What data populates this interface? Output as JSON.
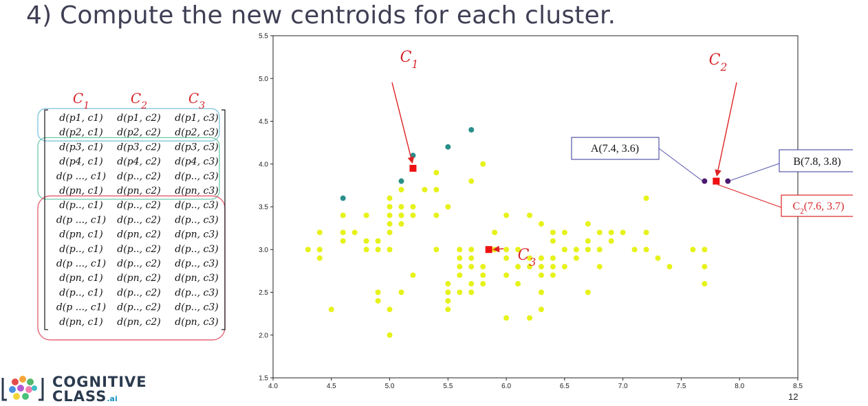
{
  "slide": {
    "title": "4) Compute the new centroids for each cluster.",
    "page_number": "12"
  },
  "logo": {
    "line1": "COGNITIVE",
    "line2": "CLASS",
    "suffix": ".ai"
  },
  "matrix": {
    "headers": [
      "C1",
      "C2",
      "C3"
    ],
    "rows": [
      [
        "d(p1, c1)",
        "d(p1, c2)",
        "d(p1, c3)"
      ],
      [
        "d(p2, c1)",
        "d(p2, c2)",
        "d(p2, c3)"
      ],
      [
        "d(p3, c1)",
        "d(p3, c2)",
        "d(p3, c3)"
      ],
      [
        "d(p4, c1)",
        "d(p4, c2)",
        "d(p4, c3)"
      ],
      [
        "d(p ..., c1)",
        "d(p.., c2)",
        "d(p.., c3)"
      ],
      [
        "d(pn, c1)",
        "d(pn, c2)",
        "d(pn, c3)"
      ],
      [
        "d(p.., c1)",
        "d(p.., c2)",
        "d(p.., c3)"
      ],
      [
        "d(p ..., c1)",
        "d(p.., c2)",
        "d(p.., c3)"
      ],
      [
        "d(pn, c1)",
        "d(pn, c2)",
        "d(pn, c3)"
      ],
      [
        "d(p.., c1)",
        "d(p.., c2)",
        "d(p.., c3)"
      ],
      [
        "d(p ..., c1)",
        "d(p.., c2)",
        "d(p.., c3)"
      ],
      [
        "d(pn, c1)",
        "d(pn, c2)",
        "d(pn, c3)"
      ],
      [
        "d(p.., c1)",
        "d(p.., c2)",
        "d(p.., c3)"
      ],
      [
        "d(p ..., c1)",
        "d(p.., c2)",
        "d(p.., c3)"
      ],
      [
        "d(pn, c1)",
        "d(pn, c2)",
        "d(pn, c3)"
      ]
    ],
    "groups": [
      {
        "rows": [
          0,
          1
        ],
        "color": "#7cc4dc"
      },
      {
        "rows": [
          2,
          5
        ],
        "color": "#6fc9a8"
      },
      {
        "rows": [
          6,
          14
        ],
        "color": "#e25a6e"
      }
    ]
  },
  "colors": {
    "yellow_cluster": "#e6f21a",
    "teal_cluster": "#2a8f8b",
    "purple_cluster": "#4b1a6e",
    "centroid": "#ee1111",
    "arrow": "#dd2222",
    "callout_box": "#5555aa",
    "callout_red": "#dd2222"
  },
  "chart_data": {
    "type": "scatter",
    "title": "",
    "xlabel": "",
    "ylabel": "",
    "xlim": [
      4.0,
      8.5
    ],
    "ylim": [
      1.5,
      5.5
    ],
    "x_ticks": [
      "4.0",
      "4.5",
      "5.0",
      "5.5",
      "6.0",
      "6.5",
      "7.0",
      "7.5",
      "8.0",
      "8.5"
    ],
    "y_ticks": [
      "1.5",
      "2.0",
      "2.5",
      "3.0",
      "3.5",
      "4.0",
      "4.5",
      "5.0",
      "5.5"
    ],
    "grid": false,
    "series": [
      {
        "color": "#e6f21a",
        "points": [
          [
            4.3,
            3.0
          ],
          [
            4.4,
            2.9
          ],
          [
            4.4,
            3.0
          ],
          [
            4.4,
            3.2
          ],
          [
            4.5,
            2.3
          ],
          [
            4.6,
            3.1
          ],
          [
            4.6,
            3.2
          ],
          [
            4.6,
            3.4
          ],
          [
            4.7,
            3.2
          ],
          [
            4.8,
            3.0
          ],
          [
            4.8,
            3.1
          ],
          [
            4.8,
            3.4
          ],
          [
            4.9,
            2.4
          ],
          [
            4.9,
            2.5
          ],
          [
            4.9,
            3.0
          ],
          [
            4.9,
            3.1
          ],
          [
            5.0,
            2.0
          ],
          [
            5.0,
            2.3
          ],
          [
            5.0,
            3.0
          ],
          [
            5.0,
            3.2
          ],
          [
            5.0,
            3.3
          ],
          [
            5.0,
            3.4
          ],
          [
            5.0,
            3.5
          ],
          [
            5.0,
            3.6
          ],
          [
            5.1,
            2.5
          ],
          [
            5.1,
            3.3
          ],
          [
            5.1,
            3.4
          ],
          [
            5.1,
            3.5
          ],
          [
            5.1,
            3.7
          ],
          [
            5.1,
            3.8
          ],
          [
            5.2,
            2.7
          ],
          [
            5.2,
            3.4
          ],
          [
            5.2,
            3.5
          ],
          [
            5.3,
            3.7
          ],
          [
            5.4,
            3.0
          ],
          [
            5.4,
            3.4
          ],
          [
            5.4,
            3.7
          ],
          [
            5.4,
            3.9
          ],
          [
            5.5,
            2.3
          ],
          [
            5.5,
            2.4
          ],
          [
            5.5,
            2.5
          ],
          [
            5.5,
            2.6
          ],
          [
            5.5,
            3.5
          ],
          [
            5.6,
            2.5
          ],
          [
            5.6,
            2.7
          ],
          [
            5.6,
            2.8
          ],
          [
            5.6,
            2.9
          ],
          [
            5.6,
            3.0
          ],
          [
            5.7,
            2.5
          ],
          [
            5.7,
            2.6
          ],
          [
            5.7,
            2.8
          ],
          [
            5.7,
            2.9
          ],
          [
            5.7,
            3.0
          ],
          [
            5.7,
            3.8
          ],
          [
            5.8,
            2.6
          ],
          [
            5.8,
            2.7
          ],
          [
            5.8,
            2.8
          ],
          [
            5.8,
            4.0
          ],
          [
            5.9,
            3.0
          ],
          [
            5.9,
            3.2
          ],
          [
            6.0,
            2.2
          ],
          [
            6.0,
            2.7
          ],
          [
            6.0,
            2.9
          ],
          [
            6.0,
            3.0
          ],
          [
            6.0,
            3.4
          ],
          [
            6.1,
            2.6
          ],
          [
            6.1,
            2.8
          ],
          [
            6.1,
            3.0
          ],
          [
            6.2,
            2.2
          ],
          [
            6.2,
            2.8
          ],
          [
            6.2,
            2.9
          ],
          [
            6.2,
            3.4
          ],
          [
            6.3,
            2.3
          ],
          [
            6.3,
            2.5
          ],
          [
            6.3,
            2.7
          ],
          [
            6.3,
            2.8
          ],
          [
            6.3,
            2.9
          ],
          [
            6.3,
            3.3
          ],
          [
            6.4,
            2.7
          ],
          [
            6.4,
            2.8
          ],
          [
            6.4,
            2.9
          ],
          [
            6.4,
            3.1
          ],
          [
            6.4,
            3.2
          ],
          [
            6.5,
            2.8
          ],
          [
            6.5,
            3.0
          ],
          [
            6.5,
            3.2
          ],
          [
            6.6,
            2.9
          ],
          [
            6.6,
            3.0
          ],
          [
            6.7,
            2.5
          ],
          [
            6.7,
            3.0
          ],
          [
            6.7,
            3.1
          ],
          [
            6.7,
            3.3
          ],
          [
            6.8,
            2.8
          ],
          [
            6.8,
            3.0
          ],
          [
            6.8,
            3.2
          ],
          [
            6.9,
            3.1
          ],
          [
            6.9,
            3.2
          ],
          [
            7.0,
            3.2
          ],
          [
            7.1,
            3.0
          ],
          [
            7.2,
            3.0
          ],
          [
            7.2,
            3.2
          ],
          [
            7.2,
            3.6
          ],
          [
            7.3,
            2.9
          ],
          [
            7.4,
            2.8
          ],
          [
            7.6,
            3.0
          ],
          [
            7.7,
            2.6
          ],
          [
            7.7,
            2.8
          ],
          [
            7.7,
            3.0
          ]
        ]
      },
      {
        "color": "#2a8f8b",
        "points": [
          [
            4.6,
            3.6
          ],
          [
            5.1,
            3.8
          ],
          [
            5.2,
            4.1
          ],
          [
            5.5,
            4.2
          ],
          [
            5.7,
            4.4
          ]
        ]
      },
      {
        "color": "#4b1a6e",
        "points": [
          [
            7.7,
            3.8
          ],
          [
            7.9,
            3.8
          ]
        ]
      }
    ],
    "centroids": [
      {
        "name": "C1",
        "x": 5.2,
        "y": 3.95
      },
      {
        "name": "C2",
        "x": 7.8,
        "y": 3.8
      },
      {
        "name": "C3",
        "x": 5.85,
        "y": 3.0
      }
    ],
    "annotations": {
      "c1_label": "C1",
      "c2_label": "C2",
      "c3_label": "C3",
      "point_a": "A(7.4, 3.6)",
      "point_b": "B(7.8, 3.8)",
      "c2_new": "C2(7.6, 3.7)"
    }
  }
}
